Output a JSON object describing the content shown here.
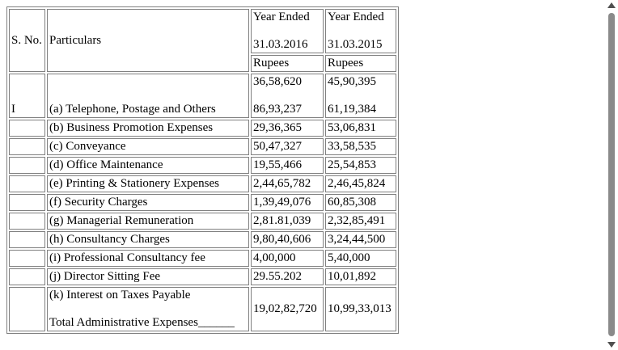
{
  "table": {
    "header": {
      "sno": "S. No.",
      "particulars": "Particulars",
      "col1_line1": "Year Ended",
      "col1_line2": "31.03.2016",
      "col2_line1": "Year Ended",
      "col2_line2": "31.03.2015",
      "unit1": "Rupees",
      "unit2": "Rupees"
    },
    "section_no": "I",
    "opening_values": [
      "36,58,620",
      "45,90,395"
    ],
    "rows": [
      {
        "label": "(a) Telephone, Postage and Others",
        "v2016": "86,93,237",
        "v2015": "61,19,384"
      },
      {
        "label": "(b) Business Promotion Expenses",
        "v2016": "29,36,365",
        "v2015": "53,06,831"
      },
      {
        "label": "(c) Conveyance",
        "v2016": "50,47,327",
        "v2015": "33,58,535"
      },
      {
        "label": "(d) Office Maintenance",
        "v2016": "19,55,466",
        "v2015": "25,54,853"
      },
      {
        "label": "(e) Printing & Stationery Expenses",
        "v2016": "2,44,65,782",
        "v2015": "2,46,45,824"
      },
      {
        "label": "(f) Security Charges",
        "v2016": "1,39,49,076",
        "v2015": "60,85,308"
      },
      {
        "label": "(g) Managerial Remuneration",
        "v2016": "2,81.81,039",
        "v2015": "2,32,85,491"
      },
      {
        "label": "(h) Consultancy Charges",
        "v2016": "9,80,40,606",
        "v2015": "3,24,44,500"
      },
      {
        "label": "(i) Professional Consultancy fee",
        "v2016": "4,00,000",
        "v2015": "5,40,000"
      },
      {
        "label": "(j) Director Sitting Fee",
        "v2016": "29.55.202",
        "v2015": "10,01,892"
      }
    ],
    "last_row": {
      "label": "(k) Interest on Taxes Payable",
      "total_label": "Total Administrative Expenses______",
      "v2016": "19,02,82,720",
      "v2015": "10,99,33,013"
    }
  }
}
